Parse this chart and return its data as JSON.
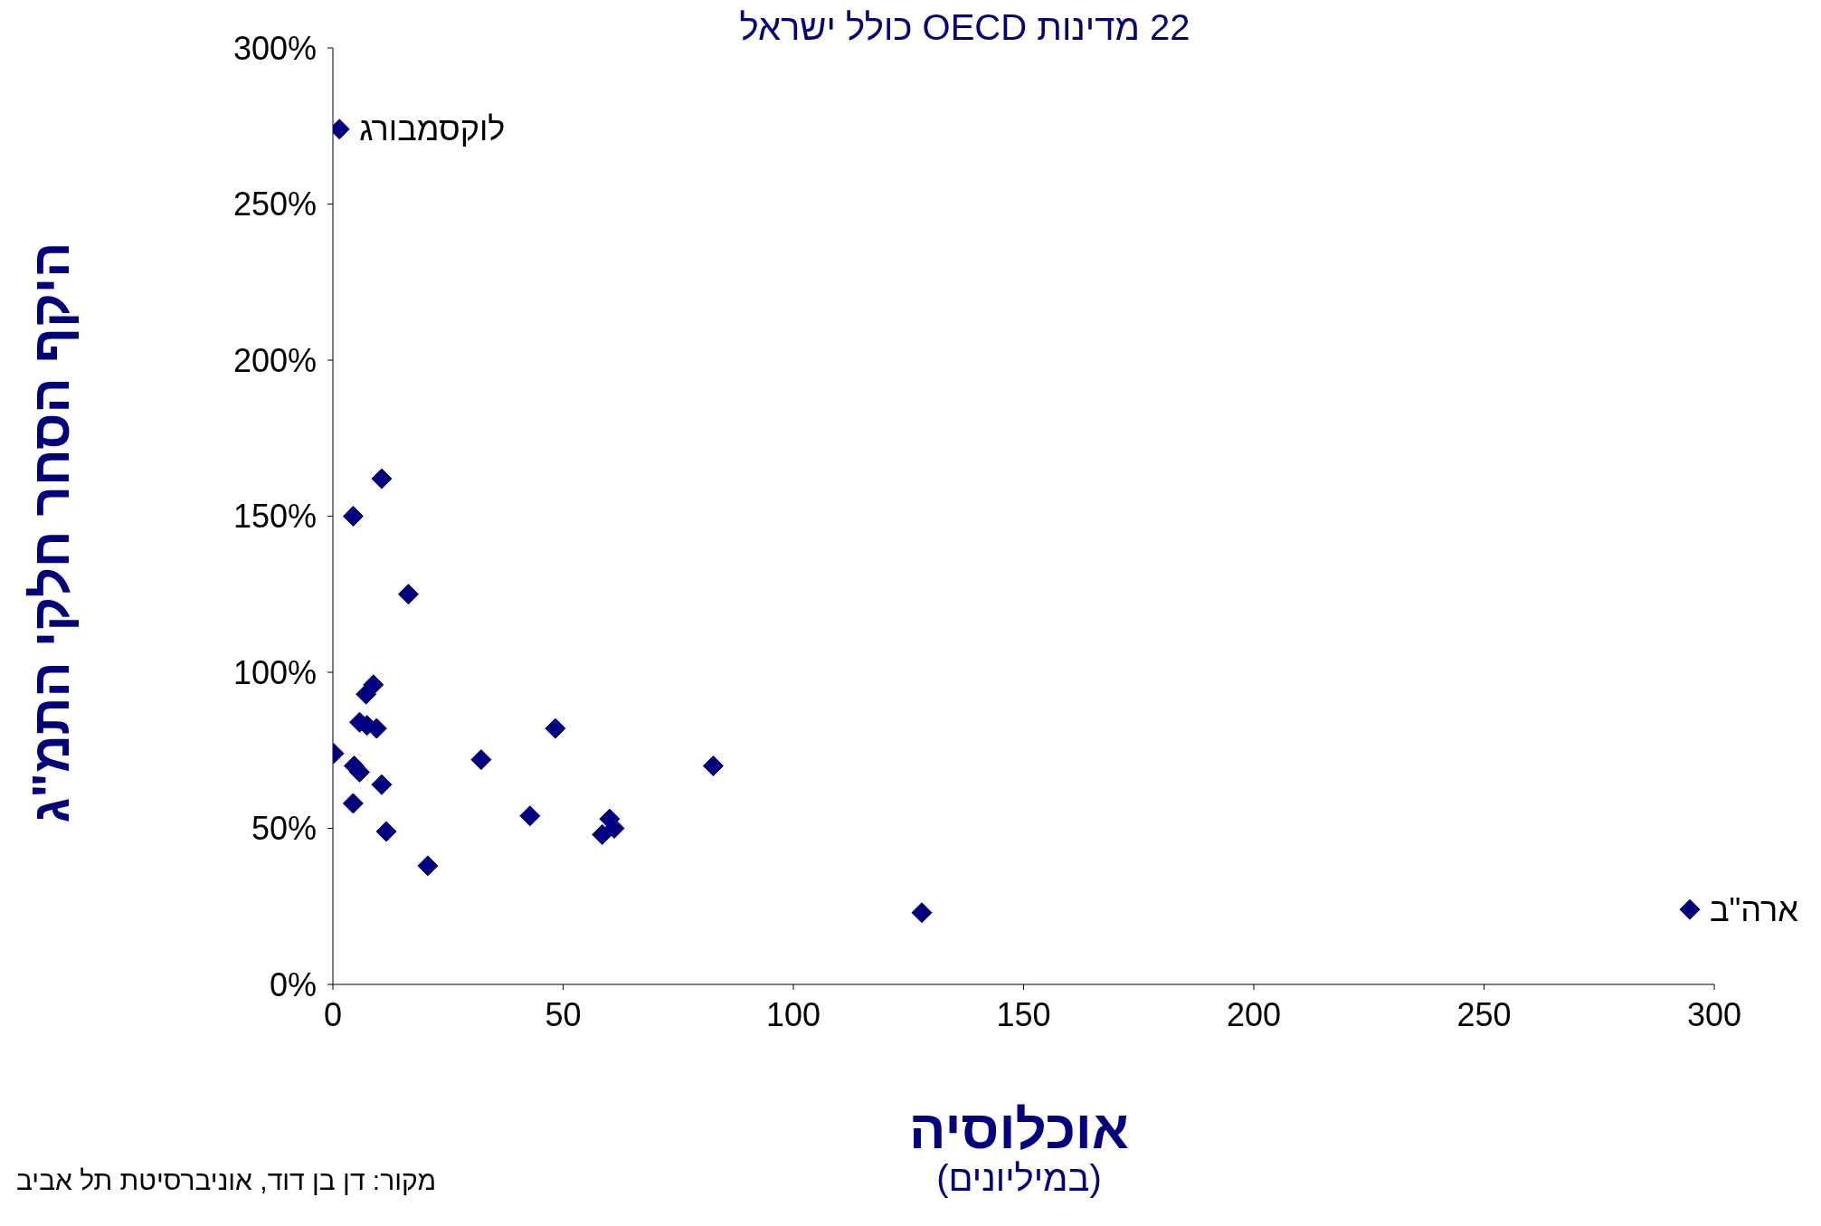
{
  "chart_data": {
    "type": "scatter",
    "title": "22 מדינות OECD כולל ישראל",
    "xlabel": "אוכלוסיה\n(במיליונים)",
    "ylabel": "היקף הסחר חלקי התמ\"ג",
    "x": [
      1.4,
      10.6,
      4.4,
      16.4,
      8.8,
      7.2,
      5.8,
      7.4,
      9.5,
      0.2,
      4.6,
      5.8,
      10.6,
      4.4,
      11.6,
      20.6,
      32.2,
      48.3,
      42.8,
      82.6,
      60.1,
      58.5,
      61.1,
      127.9,
      294.7
    ],
    "series": [
      {
        "color": "#000080",
        "values": [
          274,
          162,
          150,
          125,
          96,
          93,
          84,
          83,
          82,
          74,
          70,
          68,
          64,
          58,
          49,
          38,
          72,
          82,
          54,
          70,
          53,
          48,
          50,
          23,
          24
        ]
      }
    ],
    "marker": "diamond",
    "grid": false,
    "legend": false,
    "xlim": [
      0,
      300
    ],
    "xticks": [
      0,
      50,
      100,
      150,
      200,
      250,
      300
    ],
    "ylim": [
      0,
      300
    ],
    "yticks": [
      {
        "value": 0,
        "label": "0%"
      },
      {
        "value": 50,
        "label": "50%"
      },
      {
        "value": 100,
        "label": "100%"
      },
      {
        "value": 150,
        "label": "150%"
      },
      {
        "value": 200,
        "label": "200%"
      },
      {
        "value": 250,
        "label": "250%"
      },
      {
        "value": 300,
        "label": "300%"
      }
    ],
    "annotations": [
      {
        "text": "לוקסמבורג",
        "x": 1.4,
        "y": 274
      },
      {
        "text": "ארה\"ב",
        "x": 294.7,
        "y": 24
      },
      "מקור: דן בן דוד, אוניברסיטת תל אביב"
    ]
  }
}
